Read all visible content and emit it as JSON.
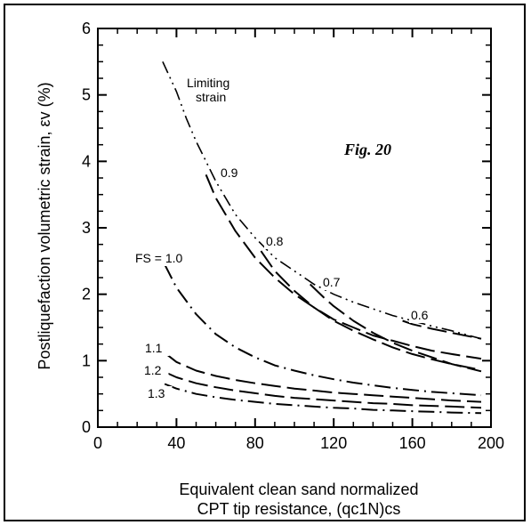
{
  "chart_data": {
    "type": "line",
    "title": "",
    "annotation_fig": "Fig. 20",
    "ylabel": "Postliquefaction volumetric strain, εv (%)",
    "xlabel_line1": "Equivalent clean sand normalized",
    "xlabel_line2": "CPT tip resistance, (qc1N)cs",
    "xlim": [
      0,
      200
    ],
    "ylim": [
      0,
      6
    ],
    "x_ticks": [
      0,
      40,
      80,
      120,
      160,
      200
    ],
    "y_ticks": [
      0,
      1,
      2,
      3,
      4,
      5,
      6
    ],
    "limiting_label_1": "Limiting",
    "limiting_label_2": "strain",
    "series": [
      {
        "name": "Limiting strain",
        "dash": "limit",
        "x": [
          33,
          40,
          45,
          50,
          55,
          60,
          70,
          80,
          90,
          100,
          110,
          120,
          130,
          140,
          150,
          160,
          170,
          180,
          195
        ],
        "y": [
          5.5,
          5.05,
          4.65,
          4.3,
          4.0,
          3.7,
          3.2,
          2.85,
          2.55,
          2.35,
          2.15,
          2.0,
          1.88,
          1.78,
          1.68,
          1.6,
          1.52,
          1.45,
          1.33
        ]
      },
      {
        "name": "0.9",
        "label": "0.9",
        "dash": "long",
        "x": [
          55,
          60,
          70,
          80,
          90,
          100,
          110,
          120,
          130,
          140,
          150,
          160,
          170,
          180,
          195
        ],
        "y": [
          3.8,
          3.45,
          2.95,
          2.55,
          2.25,
          2.0,
          1.8,
          1.62,
          1.5,
          1.38,
          1.3,
          1.22,
          1.15,
          1.1,
          1.03
        ]
      },
      {
        "name": "0.8",
        "label": "0.8",
        "dash": "long",
        "x": [
          83,
          90,
          100,
          110,
          120,
          130,
          140,
          150,
          160,
          170,
          180,
          195
        ],
        "y": [
          2.65,
          2.35,
          2.05,
          1.8,
          1.6,
          1.45,
          1.32,
          1.2,
          1.1,
          1.02,
          0.95,
          0.86
        ]
      },
      {
        "name": "0.7",
        "label": "0.7",
        "dash": "long",
        "x": [
          108,
          115,
          120,
          130,
          140,
          150,
          160,
          170,
          180,
          195
        ],
        "y": [
          2.15,
          1.95,
          1.82,
          1.6,
          1.42,
          1.27,
          1.15,
          1.05,
          0.95,
          0.84
        ]
      },
      {
        "name": "0.6",
        "label": "0.6",
        "dash": "long",
        "x": [
          155,
          160,
          170,
          180,
          195
        ],
        "y": [
          1.6,
          1.55,
          1.48,
          1.42,
          1.33
        ]
      },
      {
        "name": "FS = 1.0",
        "label": "FS = 1.0",
        "dash": "dashdot",
        "x": [
          34,
          40,
          50,
          60,
          70,
          80,
          90,
          100,
          110,
          120,
          130,
          140,
          150,
          160,
          170,
          180,
          195
        ],
        "y": [
          2.45,
          2.1,
          1.7,
          1.4,
          1.2,
          1.05,
          0.93,
          0.85,
          0.78,
          0.72,
          0.67,
          0.63,
          0.59,
          0.56,
          0.53,
          0.51,
          0.48
        ]
      },
      {
        "name": "1.1",
        "label": "1.1",
        "dash": "long",
        "x": [
          34,
          40,
          50,
          60,
          70,
          80,
          90,
          100,
          110,
          120,
          130,
          140,
          150,
          160,
          170,
          180,
          195
        ],
        "y": [
          1.12,
          0.98,
          0.85,
          0.77,
          0.71,
          0.66,
          0.62,
          0.58,
          0.55,
          0.52,
          0.5,
          0.48,
          0.46,
          0.44,
          0.42,
          0.4,
          0.38
        ]
      },
      {
        "name": "1.2",
        "label": "1.2",
        "dash": "long",
        "x": [
          34,
          40,
          50,
          60,
          70,
          80,
          90,
          100,
          110,
          120,
          130,
          140,
          150,
          160,
          170,
          180,
          195
        ],
        "y": [
          0.83,
          0.75,
          0.66,
          0.6,
          0.55,
          0.51,
          0.47,
          0.44,
          0.42,
          0.4,
          0.38,
          0.36,
          0.35,
          0.33,
          0.32,
          0.31,
          0.29
        ]
      },
      {
        "name": "1.3",
        "label": "1.3",
        "dash": "dashdot",
        "x": [
          34,
          40,
          50,
          60,
          70,
          80,
          90,
          100,
          110,
          120,
          130,
          140,
          150,
          160,
          170,
          180,
          195
        ],
        "y": [
          0.65,
          0.58,
          0.5,
          0.45,
          0.41,
          0.38,
          0.35,
          0.33,
          0.31,
          0.29,
          0.28,
          0.26,
          0.25,
          0.24,
          0.23,
          0.22,
          0.21
        ]
      }
    ]
  }
}
